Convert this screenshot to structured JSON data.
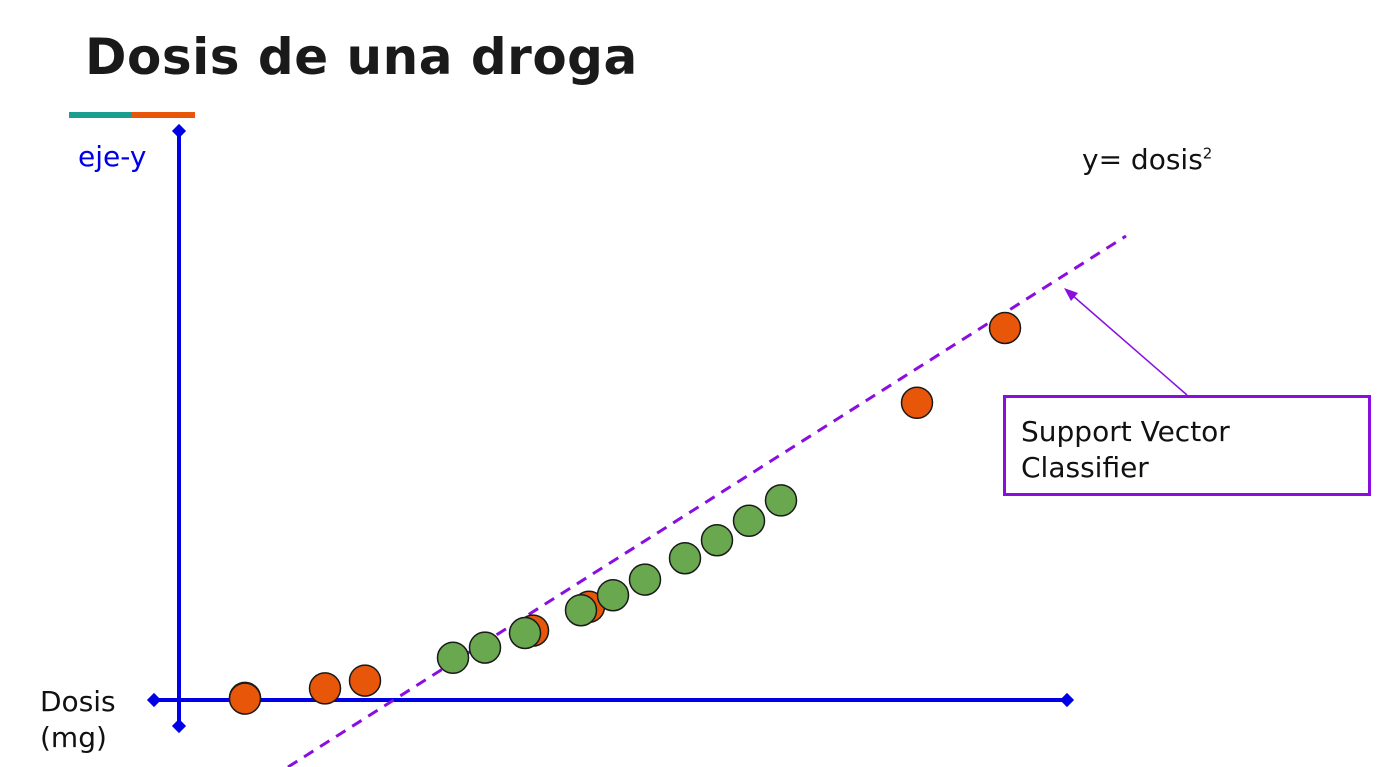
{
  "slide": {
    "title": "Dosis de una droga",
    "accent_colors": [
      "#1a9e8f",
      "#e8560a"
    ]
  },
  "axes": {
    "y_label": "eje-y",
    "x_label_line1": "Dosis",
    "x_label_line2": "(mg)",
    "axis_color": "#0000e6"
  },
  "formula": {
    "base": "y= dosis",
    "exponent": "2"
  },
  "classifier": {
    "label_line1": "Support Vector",
    "label_line2": "Classifier",
    "color": "#8a0ee0"
  },
  "chart_data": {
    "type": "scatter",
    "title": "Dosis de una droga",
    "xlabel": "Dosis (mg)",
    "ylabel": "eje-y",
    "grid": false,
    "series": [
      {
        "color": "#e8560a",
        "points": [
          [
            1.0,
            1.2
          ],
          [
            1.0,
            1.0
          ],
          [
            2.0,
            4.0
          ],
          [
            2.5,
            6.3
          ],
          [
            4.6,
            21.0
          ],
          [
            5.3,
            28.0
          ],
          [
            9.4,
            88.0
          ],
          [
            10.5,
            110.0
          ]
        ]
      },
      {
        "color": "#6aa84f",
        "points": [
          [
            3.6,
            13.0
          ],
          [
            4.0,
            16.0
          ],
          [
            4.5,
            20.3
          ],
          [
            5.2,
            27.0
          ],
          [
            5.6,
            31.4
          ],
          [
            6.0,
            36.0
          ],
          [
            6.5,
            42.3
          ],
          [
            6.9,
            47.6
          ],
          [
            7.3,
            53.3
          ],
          [
            7.7,
            59.3
          ]
        ]
      }
    ]
  }
}
